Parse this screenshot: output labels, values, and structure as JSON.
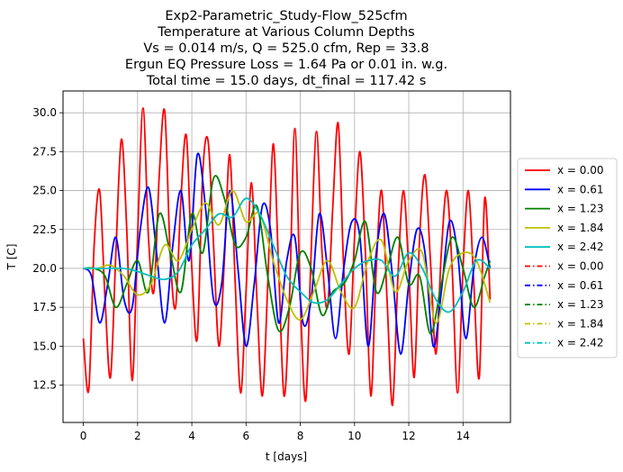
{
  "chart_data": {
    "type": "line",
    "title_lines": [
      "Exp2-Parametric_Study-Flow_525cfm",
      "Temperature at Various Column Depths",
      "Vs = 0.014 m/s, Q = 525.0 cfm, Rep = 33.8",
      "Ergun EQ Pressure Loss = 1.64 Pa or 0.01 in. w.g.",
      "Total time = 15.0 days, dt_final = 117.42 s"
    ],
    "xlabel": "t [days]",
    "ylabel": "T [C]",
    "xlim": [
      -0.75,
      15.75
    ],
    "ylim": [
      10.1,
      31.4
    ],
    "xticks": [
      0,
      2,
      4,
      6,
      8,
      10,
      12,
      14
    ],
    "yticks": [
      12.5,
      15.0,
      17.5,
      20.0,
      22.5,
      25.0,
      27.5,
      30.0
    ],
    "xtick_labels": [
      "0",
      "2",
      "4",
      "6",
      "8",
      "10",
      "12",
      "14"
    ],
    "ytick_labels": [
      "12.5",
      "15.0",
      "17.5",
      "20.0",
      "22.5",
      "25.0",
      "27.5",
      "30.0"
    ],
    "grid": true,
    "legend_position": "outside-right",
    "series": [
      {
        "name": "x = 0.00",
        "color": "#ff0000",
        "style": "solid",
        "x": [
          0,
          0.2,
          0.4,
          0.6,
          0.8,
          1.0,
          1.2,
          1.4,
          1.6,
          1.8,
          2.0,
          2.2,
          2.4,
          2.6,
          2.8,
          3.0,
          3.2,
          3.4,
          3.6,
          3.8,
          4.0,
          4.2,
          4.4,
          4.6,
          4.8,
          5.0,
          5.2,
          5.4,
          5.6,
          5.8,
          6.0,
          6.2,
          6.4,
          6.6,
          6.8,
          7.0,
          7.2,
          7.4,
          7.6,
          7.8,
          8.0,
          8.2,
          8.4,
          8.6,
          8.8,
          9.0,
          9.2,
          9.4,
          9.6,
          9.8,
          10.0,
          10.2,
          10.4,
          10.6,
          10.8,
          11.0,
          11.2,
          11.4,
          11.6,
          11.8,
          12.0,
          12.2,
          12.4,
          12.6,
          12.8,
          13.0,
          13.2,
          13.4,
          13.6,
          13.8,
          14.0,
          14.2,
          14.4,
          14.6,
          14.8,
          15.0
        ],
        "values": [
          15.5,
          12.2,
          21.5,
          25.0,
          18.0,
          13.0,
          21.0,
          28.3,
          22.5,
          12.8,
          22.0,
          30.3,
          22.0,
          18.5,
          26.0,
          30.1,
          21.0,
          17.5,
          24.5,
          28.5,
          20.0,
          15.5,
          26.0,
          28.2,
          21.5,
          15.0,
          20.5,
          27.3,
          19.0,
          12.0,
          18.5,
          25.5,
          18.0,
          11.8,
          19.0,
          28.0,
          20.0,
          11.8,
          18.0,
          29.0,
          18.0,
          11.5,
          21.0,
          28.8,
          21.0,
          17.5,
          24.0,
          29.3,
          20.0,
          14.5,
          22.0,
          27.5,
          21.0,
          11.8,
          20.0,
          25.0,
          18.0,
          11.2,
          19.5,
          25.0,
          20.0,
          13.0,
          22.0,
          26.0,
          20.5,
          14.5,
          21.0,
          25.0,
          20.0,
          12.0,
          20.0,
          25.0,
          19.0,
          13.0,
          24.5,
          18.0
        ]
      },
      {
        "name": "x = 0.61",
        "color": "#0000ff",
        "style": "solid",
        "x": [
          0,
          0.3,
          0.6,
          0.9,
          1.2,
          1.5,
          1.8,
          2.1,
          2.4,
          2.7,
          3.0,
          3.3,
          3.6,
          3.9,
          4.2,
          4.5,
          4.8,
          5.1,
          5.4,
          5.7,
          6.0,
          6.3,
          6.6,
          6.9,
          7.2,
          7.5,
          7.8,
          8.1,
          8.4,
          8.7,
          9.0,
          9.3,
          9.6,
          9.9,
          10.2,
          10.5,
          10.8,
          11.1,
          11.4,
          11.7,
          12.0,
          12.3,
          12.6,
          12.9,
          13.2,
          13.5,
          13.8,
          14.1,
          14.4,
          14.7,
          15.0
        ],
        "values": [
          20.0,
          19.5,
          16.5,
          19.0,
          22.0,
          18.0,
          17.5,
          22.5,
          25.2,
          21.0,
          16.5,
          21.5,
          25.0,
          20.5,
          27.3,
          24.0,
          18.0,
          19.0,
          25.0,
          20.0,
          15.0,
          19.0,
          24.0,
          22.5,
          16.5,
          20.5,
          22.0,
          16.5,
          18.0,
          23.5,
          20.0,
          15.5,
          20.0,
          23.0,
          22.0,
          15.0,
          21.0,
          23.5,
          19.5,
          14.5,
          19.0,
          22.5,
          21.0,
          15.0,
          18.5,
          23.0,
          21.0,
          15.5,
          20.0,
          22.0,
          20.0
        ]
      },
      {
        "name": "x = 1.23",
        "color": "#008000",
        "style": "solid",
        "x": [
          0,
          0.4,
          0.8,
          1.2,
          1.6,
          2.0,
          2.4,
          2.8,
          3.2,
          3.6,
          4.0,
          4.4,
          4.8,
          5.2,
          5.6,
          6.0,
          6.4,
          6.8,
          7.2,
          7.6,
          8.0,
          8.4,
          8.8,
          9.2,
          9.6,
          10.0,
          10.4,
          10.8,
          11.2,
          11.6,
          12.0,
          12.4,
          12.8,
          13.2,
          13.6,
          14.0,
          14.4,
          14.8,
          15.0
        ],
        "values": [
          20.0,
          20.0,
          19.5,
          17.5,
          19.0,
          20.5,
          18.5,
          23.5,
          21.0,
          18.5,
          23.5,
          21.0,
          25.8,
          24.5,
          21.5,
          22.0,
          24.0,
          19.5,
          16.0,
          17.5,
          21.0,
          20.0,
          17.0,
          18.5,
          19.0,
          20.5,
          23.0,
          18.5,
          20.0,
          22.0,
          19.0,
          19.5,
          15.8,
          19.0,
          22.0,
          20.0,
          17.5,
          19.5,
          20.5
        ]
      },
      {
        "name": "x = 1.84",
        "color": "#bfbf00",
        "style": "solid",
        "x": [
          0,
          0.5,
          1.0,
          1.5,
          2.0,
          2.5,
          3.0,
          3.5,
          4.0,
          4.5,
          5.0,
          5.5,
          6.0,
          6.5,
          7.0,
          7.5,
          8.0,
          8.5,
          9.0,
          9.5,
          10.0,
          10.5,
          11.0,
          11.5,
          12.0,
          12.5,
          13.0,
          13.5,
          14.0,
          14.5,
          15.0
        ],
        "values": [
          20.0,
          20.0,
          20.2,
          19.5,
          18.3,
          19.0,
          21.5,
          20.5,
          22.5,
          24.2,
          22.8,
          25.0,
          23.0,
          23.5,
          20.5,
          18.0,
          16.7,
          18.5,
          20.5,
          18.5,
          17.5,
          20.5,
          21.8,
          18.5,
          20.5,
          21.0,
          16.5,
          20.0,
          21.0,
          20.5,
          17.8
        ]
      },
      {
        "name": "x = 2.42",
        "color": "#00bfbf",
        "style": "solid",
        "x": [
          0,
          0.5,
          1.0,
          1.5,
          2.0,
          2.5,
          3.0,
          3.5,
          4.0,
          4.5,
          5.0,
          5.5,
          6.0,
          6.5,
          7.0,
          7.5,
          8.0,
          8.5,
          9.0,
          9.5,
          10.0,
          10.5,
          11.0,
          11.5,
          12.0,
          12.5,
          13.0,
          13.5,
          14.0,
          14.5,
          15.0
        ],
        "values": [
          20.0,
          20.0,
          20.0,
          20.0,
          19.8,
          19.5,
          19.3,
          19.8,
          21.5,
          22.5,
          23.5,
          23.3,
          24.5,
          23.5,
          21.5,
          19.5,
          18.5,
          17.8,
          18.0,
          19.0,
          20.0,
          20.5,
          20.5,
          19.5,
          21.0,
          20.0,
          18.0,
          17.2,
          18.5,
          20.5,
          20.0
        ]
      },
      {
        "name": "x = 0.00",
        "color": "#ff0000",
        "style": "dashdot",
        "x": [],
        "values": []
      },
      {
        "name": "x = 0.61",
        "color": "#0000ff",
        "style": "dashdot",
        "x": [],
        "values": []
      },
      {
        "name": "x = 1.23",
        "color": "#008000",
        "style": "dashdot",
        "x": [],
        "values": []
      },
      {
        "name": "x = 1.84",
        "color": "#bfbf00",
        "style": "dashdot",
        "x": [],
        "values": []
      },
      {
        "name": "x = 2.42",
        "color": "#00bfbf",
        "style": "dashdot",
        "x": [],
        "values": []
      }
    ]
  }
}
